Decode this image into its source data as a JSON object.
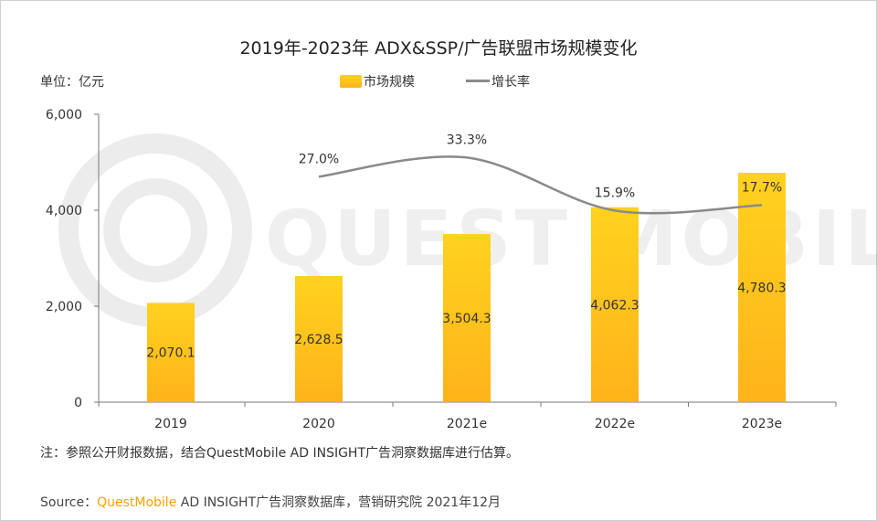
{
  "chart_data": {
    "type": "bar",
    "title": "2019年-2023年 ADX&SSP/广告联盟市场规模变化",
    "unit_label": "单位：亿元",
    "categories": [
      "2019",
      "2020",
      "2021e",
      "2022e",
      "2023e"
    ],
    "series": [
      {
        "name": "市场规模",
        "type": "bar",
        "values": [
          2070.1,
          2628.5,
          3504.3,
          4062.3,
          4780.3
        ],
        "labels": [
          "2,070.1",
          "2,628.5",
          "3,504.3",
          "4,062.3",
          "4,780.3"
        ]
      },
      {
        "name": "增长率",
        "type": "line",
        "values": [
          null,
          27.0,
          33.3,
          15.9,
          17.7
        ],
        "labels": [
          "",
          "27.0%",
          "33.3%",
          "15.9%",
          "17.7%"
        ]
      }
    ],
    "ylim": [
      0,
      6000
    ],
    "yticks": [
      0,
      2000,
      4000,
      6000
    ],
    "ytick_labels": [
      "0",
      "2,000",
      "4,000",
      "6,000"
    ],
    "legend": "top-center",
    "grid": false
  },
  "watermark": "QUEST MOBILE",
  "footer": {
    "note": "注：参照公开财报数据，结合QuestMobile AD INSIGHT广告洞察数据库进行估算。",
    "source_prefix": "Source：",
    "source_brand": "QuestMobile",
    "source_rest": " AD INSIGHT广告洞察数据库，营销研究院 2021年12月"
  },
  "colors": {
    "bar_top": "#ffd21f",
    "bar_bottom": "#ffb31a",
    "line": "#8a8a8a",
    "brand": "#f5a300"
  }
}
